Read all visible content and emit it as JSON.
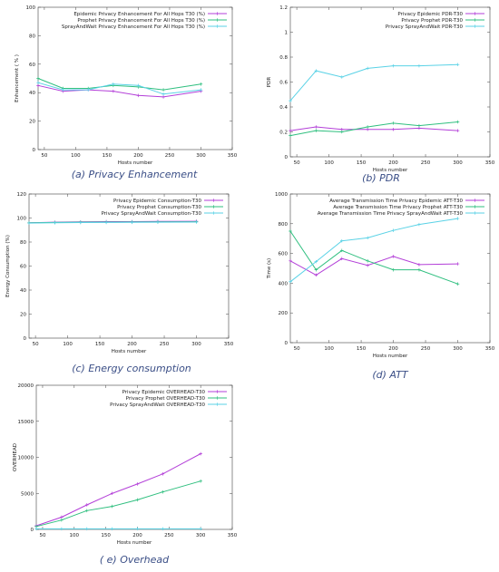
{
  "colors": {
    "epidemic": "#b33fd8",
    "prophet": "#2fbf7f",
    "spraywait": "#5ad2e6"
  },
  "chart_data": [
    {
      "id": "a",
      "type": "line",
      "caption": "(a) Privacy Enhancement",
      "xlabel": "Hosts number",
      "ylabel": "Enhancement ( % )",
      "xlim": [
        40,
        350
      ],
      "ylim": [
        0,
        100
      ],
      "xticks": [
        50,
        100,
        150,
        200,
        250,
        300,
        350
      ],
      "yticks": [
        0,
        20,
        40,
        60,
        80,
        100
      ],
      "tick_labels_x": [
        "50",
        "100",
        "150",
        "200",
        "250",
        "300",
        "350"
      ],
      "tick_labels_y": [
        "0",
        "20",
        "40",
        "60",
        "80",
        "100"
      ],
      "legend_position": "top-right",
      "series": [
        {
          "name": "Epidemic Privacy Enhancement For All Hops T30 (%)",
          "color_key": "epidemic",
          "x": [
            40,
            80,
            120,
            160,
            200,
            240,
            300
          ],
          "y": [
            45,
            41,
            42,
            41,
            38,
            37,
            41
          ]
        },
        {
          "name": "Prophet Privacy Enhancement For All Hops T30 (%)",
          "color_key": "prophet",
          "x": [
            40,
            80,
            120,
            160,
            200,
            240,
            300
          ],
          "y": [
            50,
            43,
            43,
            45,
            44,
            42,
            46
          ]
        },
        {
          "name": "SprayAndWait Privacy Enhancement For All Hops T30 (%)",
          "color_key": "spraywait",
          "x": [
            40,
            80,
            120,
            160,
            200,
            240,
            300
          ],
          "y": [
            47,
            42,
            42,
            46,
            45,
            39,
            42
          ]
        }
      ]
    },
    {
      "id": "b",
      "type": "line",
      "caption": "(b) PDR",
      "xlabel": "Hosts number",
      "ylabel": "PDR",
      "xlim": [
        40,
        350
      ],
      "ylim": [
        0,
        1.2
      ],
      "xticks": [
        50,
        100,
        150,
        200,
        250,
        300,
        350
      ],
      "yticks": [
        0,
        0.2,
        0.4,
        0.6,
        0.8,
        1,
        1.2
      ],
      "tick_labels_x": [
        "50",
        "100",
        "150",
        "200",
        "250",
        "300",
        "350"
      ],
      "tick_labels_y": [
        "0",
        "0.2",
        "0.4",
        "0.6",
        "0.8",
        "1",
        "1.2"
      ],
      "legend_position": "top-right",
      "series": [
        {
          "name": "Privacy Epidemic PDR-T30",
          "color_key": "epidemic",
          "x": [
            40,
            80,
            120,
            160,
            200,
            240,
            300
          ],
          "y": [
            0.21,
            0.24,
            0.22,
            0.22,
            0.22,
            0.23,
            0.21
          ]
        },
        {
          "name": "Privacy Prophet PDR-T30",
          "color_key": "prophet",
          "x": [
            40,
            80,
            120,
            160,
            200,
            240,
            300
          ],
          "y": [
            0.17,
            0.21,
            0.2,
            0.24,
            0.27,
            0.25,
            0.28
          ]
        },
        {
          "name": "Privacy SprayAndWait PDR-T30",
          "color_key": "spraywait",
          "x": [
            40,
            80,
            120,
            160,
            200,
            240,
            300
          ],
          "y": [
            0.45,
            0.69,
            0.64,
            0.71,
            0.73,
            0.73,
            0.74
          ]
        }
      ]
    },
    {
      "id": "c",
      "type": "line",
      "caption": "(c) Energy consumption",
      "xlabel": "Hosts number",
      "ylabel": "Energy Consumption (%)",
      "xlim": [
        40,
        350
      ],
      "ylim": [
        0,
        120
      ],
      "xticks": [
        50,
        100,
        150,
        200,
        250,
        300,
        350
      ],
      "yticks": [
        0,
        20,
        40,
        60,
        80,
        100,
        120
      ],
      "tick_labels_x": [
        "50",
        "100",
        "150",
        "200",
        "250",
        "300",
        "350"
      ],
      "tick_labels_y": [
        "0",
        "20",
        "40",
        "60",
        "80",
        "100",
        "120"
      ],
      "legend_position": "top-right",
      "series": [
        {
          "name": "Privacy Epidemic Consumption-T30",
          "color_key": "epidemic",
          "x": [
            40,
            80,
            120,
            160,
            200,
            240,
            300
          ],
          "y": [
            96,
            96.5,
            96.8,
            97,
            97,
            97.2,
            97.3
          ]
        },
        {
          "name": "Privacy Prophet Consumption-T30",
          "color_key": "prophet",
          "x": [
            40,
            80,
            120,
            160,
            200,
            240,
            300
          ],
          "y": [
            96,
            96.3,
            96.5,
            96.6,
            96.7,
            96.8,
            96.9
          ]
        },
        {
          "name": "Privacy SprayAndWait Consumption-T30",
          "color_key": "spraywait",
          "x": [
            40,
            80,
            120,
            160,
            200,
            240,
            300
          ],
          "y": [
            95.8,
            96,
            96.2,
            96.3,
            96.4,
            96.5,
            96.6
          ]
        }
      ]
    },
    {
      "id": "d",
      "type": "line",
      "caption": "(d) ATT",
      "xlabel": "Hosts number",
      "ylabel": "Time (s)",
      "xlim": [
        40,
        350
      ],
      "ylim": [
        0,
        1000
      ],
      "xticks": [
        50,
        100,
        150,
        200,
        250,
        300,
        350
      ],
      "yticks": [
        0,
        200,
        400,
        600,
        800,
        1000
      ],
      "tick_labels_x": [
        "50",
        "100",
        "150",
        "200",
        "250",
        "300",
        "350"
      ],
      "tick_labels_y": [
        "0",
        "200",
        "400",
        "600",
        "800",
        "1000"
      ],
      "legend_position": "top-right",
      "series": [
        {
          "name": "Average Transmission Time Privacy Epidemic ATT-T30",
          "color_key": "epidemic",
          "x": [
            40,
            80,
            120,
            160,
            200,
            240,
            300
          ],
          "y": [
            550,
            455,
            565,
            520,
            580,
            525,
            530
          ]
        },
        {
          "name": "Average Transmission Time Privacy Prophet ATT-T30",
          "color_key": "prophet",
          "x": [
            40,
            80,
            120,
            160,
            200,
            240,
            300
          ],
          "y": [
            750,
            490,
            620,
            550,
            490,
            490,
            395
          ]
        },
        {
          "name": "Average Transmission Time Privacy SprayAndWait ATT-T30",
          "color_key": "spraywait",
          "x": [
            40,
            80,
            120,
            160,
            200,
            240,
            300
          ],
          "y": [
            410,
            545,
            685,
            705,
            755,
            795,
            835
          ]
        }
      ]
    },
    {
      "id": "e",
      "type": "line",
      "caption": "( e) Overhead",
      "xlabel": "Hosts number",
      "ylabel": "OVERHEAD",
      "xlim": [
        40,
        350
      ],
      "ylim": [
        0,
        20000
      ],
      "xticks": [
        50,
        100,
        150,
        200,
        250,
        300,
        350
      ],
      "yticks": [
        0,
        5000,
        10000,
        15000,
        20000
      ],
      "tick_labels_x": [
        "50",
        "100",
        "150",
        "200",
        "250",
        "300",
        "350"
      ],
      "tick_labels_y": [
        "0",
        "5000",
        "10000",
        "15000",
        "20000"
      ],
      "legend_position": "top-right",
      "series": [
        {
          "name": "Privacy Epidemic OVERHEAD-T30",
          "color_key": "epidemic",
          "x": [
            40,
            80,
            120,
            160,
            200,
            240,
            300
          ],
          "y": [
            500,
            1700,
            3400,
            5000,
            6300,
            7700,
            10500
          ]
        },
        {
          "name": "Privacy Prophet OVERHEAD-T30",
          "color_key": "prophet",
          "x": [
            40,
            80,
            120,
            160,
            200,
            240,
            300
          ],
          "y": [
            400,
            1300,
            2600,
            3200,
            4100,
            5200,
            6700
          ]
        },
        {
          "name": "Privacy SprayAndWait OVERHEAD-T30",
          "color_key": "spraywait",
          "x": [
            40,
            80,
            120,
            160,
            200,
            240,
            300
          ],
          "y": [
            80,
            80,
            80,
            80,
            80,
            80,
            80
          ]
        }
      ]
    }
  ]
}
